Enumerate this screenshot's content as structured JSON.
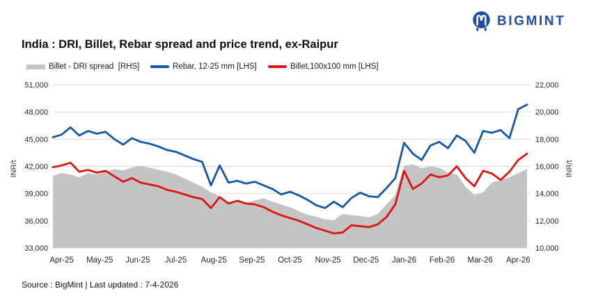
{
  "header": {
    "brand": "BIGMINT"
  },
  "title": "India : DRI, Billet, Rebar spread and price trend, ex-Raipur",
  "source_note": "Source : BigMint | Last updated : 7-4-2026",
  "colors": {
    "brand_blue": "#1E4CA3",
    "rebar_blue": "#1456A8",
    "billet_red": "#E01212",
    "spread_gray": "#C4C4C4",
    "grid": "#D9D9D9"
  },
  "chart_data": {
    "type": "line+area",
    "title": "India : DRI, Billet, Rebar spread and price trend, ex-Raipur",
    "grid": true,
    "legend_position": "top",
    "x_tick_labels": [
      "Apr-25",
      "May-25",
      "Jun-25",
      "Jul-25",
      "Aug-25",
      "Sep-25",
      "Oct-25",
      "Nov-25",
      "Dec-25",
      "Jan-26",
      "Feb-26",
      "Mar-26",
      "Apr-26"
    ],
    "left_axis": {
      "title": "INR/t",
      "min": 33000,
      "max": 51000,
      "step": 3000,
      "tick_labels": [
        "51,000",
        "48,000",
        "45,000",
        "42,000",
        "39,000",
        "36,000",
        "33,000"
      ]
    },
    "right_axis": {
      "title": "INR/t",
      "min": 10000,
      "max": 22000,
      "step": 2000,
      "tick_labels": [
        "22,000",
        "20,000",
        "18,000",
        "16,000",
        "14,000",
        "12,000",
        "10,000"
      ]
    },
    "frequency": "weekly",
    "series": [
      {
        "name": "Billet - DRI spread  [RHS]",
        "axis": "right",
        "kind": "area",
        "color": "#C4C4C4",
        "values": [
          15300,
          15500,
          15400,
          15200,
          15500,
          15400,
          15600,
          15800,
          15700,
          15900,
          16050,
          15900,
          15750,
          15600,
          15400,
          15100,
          14800,
          14500,
          14100,
          13800,
          13300,
          13450,
          13300,
          13500,
          13650,
          13400,
          13200,
          13000,
          12700,
          12450,
          12300,
          12100,
          12050,
          12500,
          12400,
          12350,
          12250,
          12500,
          13200,
          13900,
          16050,
          16150,
          15850,
          16000,
          15900,
          15550,
          15400,
          14500,
          13900,
          14100,
          14800,
          15000,
          15200,
          15500,
          15800
        ]
      },
      {
        "name": "Rebar, 12-25 mm [LHS]",
        "axis": "left",
        "kind": "line",
        "color": "#1456A8",
        "values": [
          45200,
          45500,
          46300,
          45400,
          45900,
          45600,
          45800,
          45000,
          44400,
          45100,
          44700,
          44500,
          44200,
          43800,
          43600,
          43200,
          42800,
          42500,
          39900,
          42100,
          40200,
          40400,
          40100,
          40300,
          39900,
          39500,
          38900,
          39200,
          38800,
          38300,
          37700,
          37400,
          38100,
          37500,
          38500,
          39100,
          38700,
          38600,
          39600,
          40700,
          44600,
          43400,
          42700,
          44300,
          44700,
          44000,
          45400,
          44800,
          43500,
          45900,
          45700,
          46000,
          45100,
          48300,
          48800
        ]
      },
      {
        "name": "Billet,100x100 mm [LHS]",
        "axis": "left",
        "kind": "line",
        "color": "#E01212",
        "values": [
          41900,
          42100,
          42400,
          41400,
          41600,
          41300,
          41500,
          40900,
          40300,
          40700,
          40200,
          40000,
          39800,
          39400,
          39200,
          38900,
          38600,
          38400,
          37400,
          38600,
          37900,
          38200,
          37900,
          37800,
          37500,
          37000,
          36600,
          36300,
          36000,
          35600,
          35200,
          34900,
          34600,
          34700,
          35500,
          35400,
          35300,
          35600,
          36400,
          37800,
          41500,
          39500,
          40100,
          41100,
          40800,
          41000,
          42000,
          40700,
          39800,
          41500,
          41200,
          40500,
          41400,
          42700,
          43400
        ]
      }
    ]
  }
}
